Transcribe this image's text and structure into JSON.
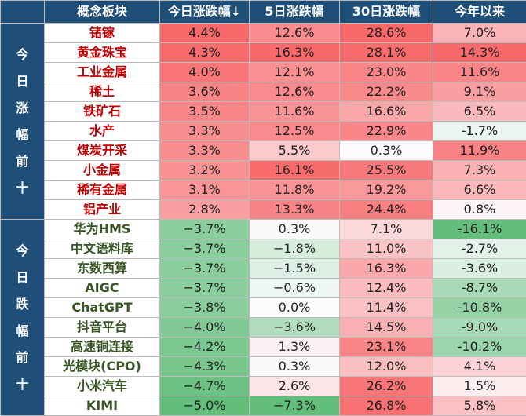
{
  "colors": {
    "header_bg": "#1f4e79",
    "header_text": "#ffffff",
    "positive_name": "#c00000",
    "negative_name": "#375623",
    "pos_strong": "#f8696b",
    "neg_strong": "#63be7b"
  },
  "chart_data": {
    "type": "table",
    "columns": [
      "概念板块",
      "今日涨跌幅↓",
      "5日涨跌幅",
      "30日涨跌幅",
      "今年以来"
    ],
    "groups": [
      {
        "label": "今日涨幅前十",
        "rows": [
          {
            "name": "锗镓",
            "values": [
              "4.4%",
              "12.6%",
              "28.6%",
              "7.0%"
            ]
          },
          {
            "name": "黄金珠宝",
            "values": [
              "4.3%",
              "16.3%",
              "28.1%",
              "14.3%"
            ]
          },
          {
            "name": "工业金属",
            "values": [
              "4.0%",
              "12.1%",
              "23.0%",
              "11.6%"
            ]
          },
          {
            "name": "稀土",
            "values": [
              "3.6%",
              "12.6%",
              "22.2%",
              "9.1%"
            ]
          },
          {
            "name": "铁矿石",
            "values": [
              "3.5%",
              "11.6%",
              "16.6%",
              "6.5%"
            ]
          },
          {
            "name": "水产",
            "values": [
              "3.3%",
              "12.5%",
              "22.9%",
              "-1.7%"
            ]
          },
          {
            "name": "煤炭开采",
            "values": [
              "3.3%",
              "5.5%",
              "0.3%",
              "11.9%"
            ]
          },
          {
            "name": "小金属",
            "values": [
              "3.2%",
              "16.1%",
              "25.5%",
              "7.3%"
            ]
          },
          {
            "name": "稀有金属",
            "values": [
              "3.1%",
              "11.8%",
              "19.2%",
              "6.6%"
            ]
          },
          {
            "name": "铝产业",
            "values": [
              "2.8%",
              "13.3%",
              "24.4%",
              "0.8%"
            ]
          }
        ]
      },
      {
        "label": "今日跌幅前十",
        "rows": [
          {
            "name": "华为HMS",
            "values": [
              "−3.7%",
              "0.3%",
              "7.1%",
              "-16.1%"
            ]
          },
          {
            "name": "中文语料库",
            "values": [
              "−3.7%",
              "−1.8%",
              "11.0%",
              "-2.7%"
            ]
          },
          {
            "name": "东数西算",
            "values": [
              "−3.7%",
              "−1.5%",
              "16.3%",
              "-3.6%"
            ]
          },
          {
            "name": "AIGC",
            "values": [
              "−3.7%",
              "−0.6%",
              "12.4%",
              "-8.7%"
            ]
          },
          {
            "name": "ChatGPT",
            "values": [
              "−3.8%",
              "0.0%",
              "11.4%",
              "-10.8%"
            ]
          },
          {
            "name": "抖音平台",
            "values": [
              "−4.0%",
              "−3.6%",
              "14.5%",
              "-9.0%"
            ]
          },
          {
            "name": "高速铜连接",
            "values": [
              "−4.2%",
              "1.3%",
              "23.1%",
              "-10.2%"
            ]
          },
          {
            "name": "光模块(CPO)",
            "values": [
              "−4.3%",
              "0.3%",
              "12.0%",
              "4.1%"
            ]
          },
          {
            "name": "小米汽车",
            "values": [
              "−4.7%",
              "2.6%",
              "26.2%",
              "1.5%"
            ]
          },
          {
            "name": "KIMI",
            "values": [
              "−5.0%",
              "−7.3%",
              "26.8%",
              "5.8%"
            ]
          }
        ]
      }
    ]
  }
}
